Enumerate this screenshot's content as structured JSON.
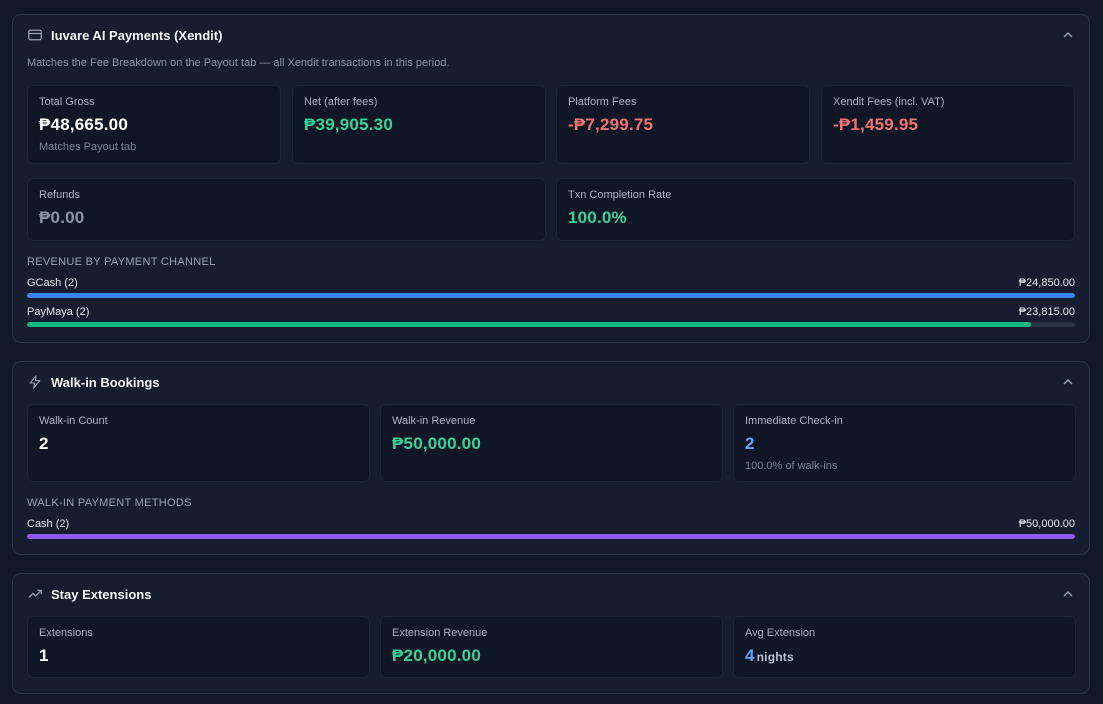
{
  "payments": {
    "title": "Iuvare AI Payments (Xendit)",
    "subtitle": "Matches the Fee Breakdown on the Payout tab — all Xendit transactions in this period.",
    "cards": {
      "gross": {
        "label": "Total Gross",
        "value": "₱48,665.00",
        "note": "Matches Payout tab"
      },
      "net": {
        "label": "Net (after fees)",
        "value": "₱39,905.30"
      },
      "platform": {
        "label": "Platform Fees",
        "value": "-₱7,299.75"
      },
      "xendit": {
        "label": "Xendit Fees (incl. VAT)",
        "value": "-₱1,459.95"
      },
      "refunds": {
        "label": "Refunds",
        "value": "₱0.00"
      },
      "completion": {
        "label": "Txn Completion Rate",
        "value": "100.0%"
      }
    },
    "channel_heading": "Revenue by Payment Channel",
    "channels": [
      {
        "name": "GCash (2)",
        "amount": "₱24,850.00",
        "fraction": 1.0,
        "color": "#3b82f6"
      },
      {
        "name": "PayMaya (2)",
        "amount": "₱23,815.00",
        "fraction": 0.958,
        "color": "#10b981"
      }
    ]
  },
  "walkin": {
    "title": "Walk-in Bookings",
    "cards": {
      "count": {
        "label": "Walk-in Count",
        "value": "2"
      },
      "revenue": {
        "label": "Walk-in Revenue",
        "value": "₱50,000.00"
      },
      "checkin": {
        "label": "Immediate Check-in",
        "value": "2",
        "note": "100.0% of walk-ins"
      }
    },
    "methods_heading": "Walk-in Payment Methods",
    "methods": [
      {
        "name": "Cash (2)",
        "amount": "₱50,000.00",
        "fraction": 1.0,
        "color": "#8b5cf6"
      }
    ]
  },
  "extensions": {
    "title": "Stay Extensions",
    "cards": {
      "count": {
        "label": "Extensions",
        "value": "1"
      },
      "revenue": {
        "label": "Extension Revenue",
        "value": "₱20,000.00"
      },
      "avg": {
        "label": "Avg Extension",
        "value": "4",
        "unit": "nights"
      }
    }
  },
  "icons": {
    "payments": "credit-card-icon",
    "walkin": "lightning-icon",
    "extensions": "trending-up-icon",
    "collapse": "chevron-up-icon"
  }
}
